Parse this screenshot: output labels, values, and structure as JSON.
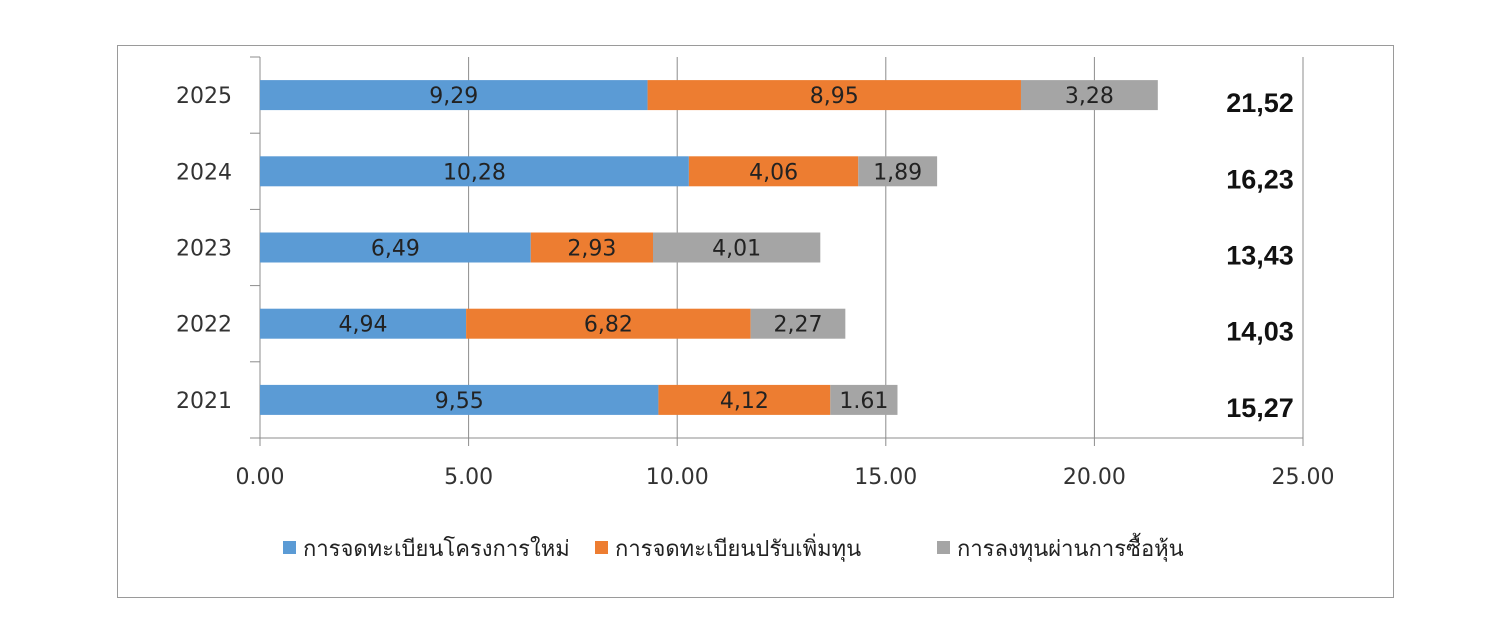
{
  "chart_data": {
    "type": "bar",
    "orientation": "horizontal",
    "stacked": true,
    "categories": [
      "2025",
      "2024",
      "2023",
      "2022",
      "2021"
    ],
    "series": [
      {
        "name": "การจดทะเบียนโครงการใหม่",
        "color": "#5B9BD5",
        "values": [
          9.29,
          10.28,
          6.49,
          4.94,
          9.55
        ],
        "labels": [
          "9,29",
          "10,28",
          "6,49",
          "4,94",
          "9,55"
        ]
      },
      {
        "name": "การจดทะเบียนปรับเพิ่มทุน",
        "color": "#ED7D31",
        "values": [
          8.95,
          4.06,
          2.93,
          6.82,
          4.12
        ],
        "labels": [
          "8,95",
          "4,06",
          "2,93",
          "6,82",
          "4,12"
        ]
      },
      {
        "name": "การลงทุนผ่านการซื้อหุ้น",
        "color": "#A5A5A5",
        "values": [
          3.28,
          1.89,
          4.01,
          2.27,
          1.61
        ],
        "labels": [
          "3,28",
          "1,89",
          "4,01",
          "2,27",
          "1.61"
        ]
      }
    ],
    "totals": [
      "21,52",
      "16,23",
      "13,43",
      "14,03",
      "15,27"
    ],
    "xlim": [
      0,
      25
    ],
    "xticks": [
      0,
      5,
      10,
      15,
      20,
      25
    ],
    "xtick_labels": [
      "0.00",
      "5.00",
      "10.00",
      "15.00",
      "20.00",
      "25.00"
    ],
    "grid": true,
    "legend_position": "bottom"
  }
}
